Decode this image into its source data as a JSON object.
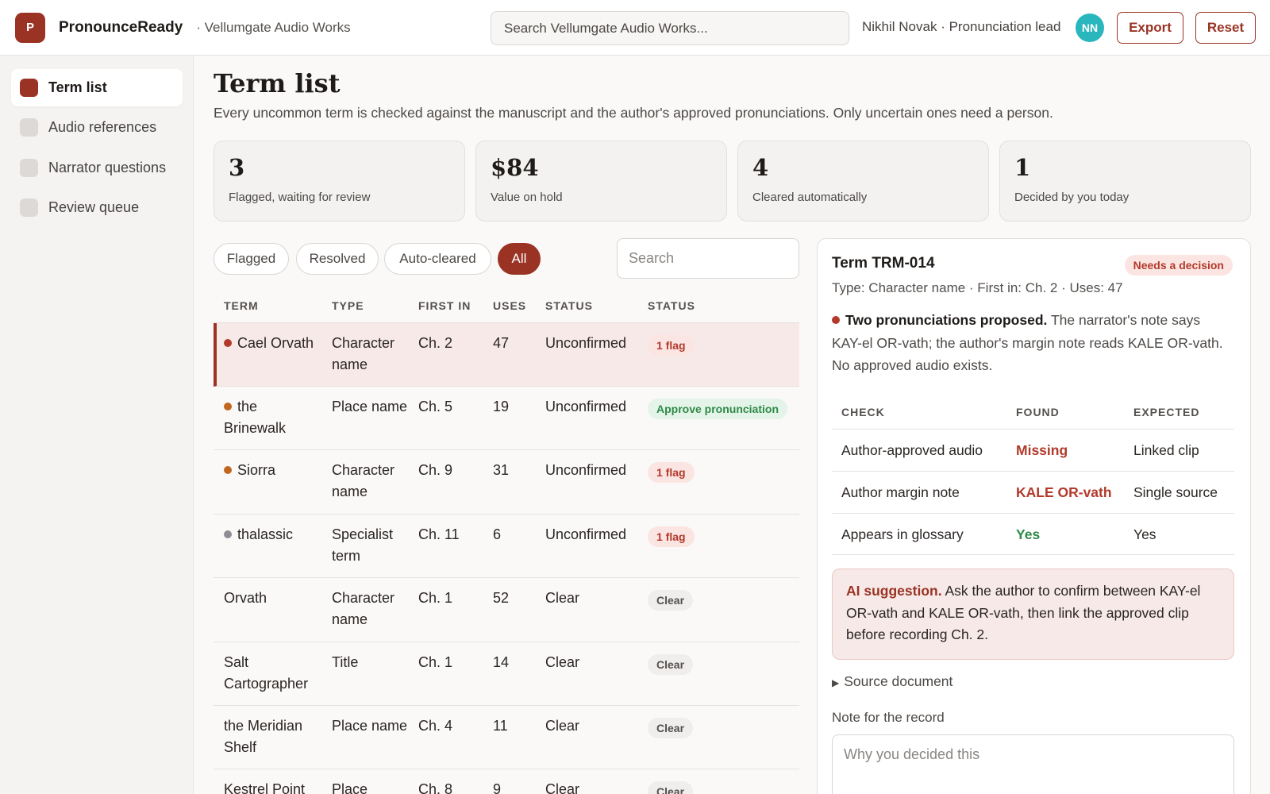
{
  "header": {
    "logo_letter": "P",
    "app_name": "PronounceReady",
    "workspace": "· Vellumgate Audio Works",
    "search_placeholder": "Search Vellumgate Audio Works...",
    "user": "Nikhil Novak · Pronunciation lead",
    "avatar_initials": "NN",
    "export_label": "Export",
    "reset_label": "Reset"
  },
  "sidebar": {
    "items": [
      {
        "label": "Term list",
        "active": true
      },
      {
        "label": "Audio references",
        "active": false
      },
      {
        "label": "Narrator questions",
        "active": false
      },
      {
        "label": "Review queue",
        "active": false
      }
    ]
  },
  "page": {
    "title": "Term list",
    "subtitle": "Every uncommon term is checked against the manuscript and the author's approved pronunciations. Only uncertain ones need a person."
  },
  "stats": [
    {
      "value": "3",
      "label": "Flagged, waiting for review"
    },
    {
      "value": "$84",
      "label": "Value on hold"
    },
    {
      "value": "4",
      "label": "Cleared automatically"
    },
    {
      "value": "1",
      "label": "Decided by you today"
    }
  ],
  "filters": {
    "chips": [
      "Flagged",
      "Resolved",
      "Auto-cleared",
      "All"
    ],
    "active": "All",
    "search_placeholder": "Search"
  },
  "table": {
    "headers": [
      "TERM",
      "TYPE",
      "FIRST IN",
      "USES",
      "STATUS",
      "STATUS"
    ],
    "rows": [
      {
        "term": "Cael Orvath",
        "dot": "red",
        "type": "Character name",
        "first_in": "Ch. 2",
        "uses": "47",
        "status": "Unconfirmed",
        "badge": "1 flag",
        "badge_kind": "flag",
        "selected": true
      },
      {
        "term": "the Brinewalk",
        "dot": "orange",
        "type": "Place name",
        "first_in": "Ch. 5",
        "uses": "19",
        "status": "Unconfirmed",
        "badge": "Approve pronunciation",
        "badge_kind": "approve"
      },
      {
        "term": "Siorra",
        "dot": "orange",
        "type": "Character name",
        "first_in": "Ch. 9",
        "uses": "31",
        "status": "Unconfirmed",
        "badge": "1 flag",
        "badge_kind": "flag"
      },
      {
        "term": "thalassic",
        "dot": "gray",
        "type": "Specialist term",
        "first_in": "Ch. 11",
        "uses": "6",
        "status": "Unconfirmed",
        "badge": "1 flag",
        "badge_kind": "flag"
      },
      {
        "term": "Orvath",
        "dot": "",
        "type": "Character name",
        "first_in": "Ch. 1",
        "uses": "52",
        "status": "Clear",
        "badge": "Clear",
        "badge_kind": "clear"
      },
      {
        "term": "Salt Cartographer",
        "dot": "",
        "type": "Title",
        "first_in": "Ch. 1",
        "uses": "14",
        "status": "Clear",
        "badge": "Clear",
        "badge_kind": "clear"
      },
      {
        "term": "the Meridian Shelf",
        "dot": "",
        "type": "Place name",
        "first_in": "Ch. 4",
        "uses": "11",
        "status": "Clear",
        "badge": "Clear",
        "badge_kind": "clear"
      },
      {
        "term": "Kestrel Point",
        "dot": "",
        "type": "Place",
        "first_in": "Ch. 8",
        "uses": "9",
        "status": "Clear",
        "badge": "Clear",
        "badge_kind": "clear"
      }
    ]
  },
  "detail": {
    "title": "Term TRM-014",
    "badge": "Needs a decision",
    "meta": "Type: Character name · First in: Ch. 2 · Uses: 47",
    "headline": "Two pronunciations proposed.",
    "description": "The narrator's note says KAY-el OR-vath; the author's margin note reads KALE OR-vath. No approved audio exists.",
    "check_headers": [
      "CHECK",
      "FOUND",
      "EXPECTED"
    ],
    "checks": [
      {
        "check": "Author-approved audio",
        "found": "Missing",
        "found_color": "#b23a2b",
        "expected": "Linked clip"
      },
      {
        "check": "Author margin note",
        "found": "KALE OR-vath",
        "found_color": "#b23a2b",
        "expected": "Single source"
      },
      {
        "check": "Appears in glossary",
        "found": "Yes",
        "found_color": "#2f8a48",
        "expected": "Yes"
      }
    ],
    "ai_label": "AI suggestion.",
    "ai_text": "Ask the author to confirm between KAY-el OR-vath and KALE OR-vath, then link the approved clip before recording Ch. 2.",
    "source_label": "Source document",
    "note_label": "Note for the record",
    "note_placeholder": "Why you decided this"
  },
  "colors": {
    "accent": "#9a3324",
    "avatar": "#2ab6bd",
    "dot_red": "#b23a2b",
    "dot_orange": "#c0661f",
    "dot_gray": "#8f8c95"
  }
}
